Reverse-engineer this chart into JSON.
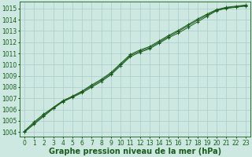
{
  "background_color": "#cce8e0",
  "grid_color": "#aacccc",
  "line_color": "#1a5c1a",
  "marker_color": "#1a5c1a",
  "xlabel": "Graphe pression niveau de la mer (hPa)",
  "xlabel_fontsize": 7.0,
  "tick_fontsize": 5.5,
  "ytick_labels": [
    1004,
    1005,
    1006,
    1007,
    1008,
    1009,
    1010,
    1011,
    1012,
    1013,
    1014,
    1015
  ],
  "xtick_labels": [
    0,
    1,
    2,
    3,
    4,
    5,
    6,
    7,
    8,
    9,
    10,
    11,
    12,
    13,
    14,
    15,
    16,
    17,
    18,
    19,
    20,
    21,
    22,
    23
  ],
  "ylim": [
    1003.6,
    1015.6
  ],
  "xlim": [
    -0.5,
    23.5
  ],
  "series1": [
    1004.0,
    1004.7,
    1005.4,
    1006.1,
    1006.7,
    1007.1,
    1007.5,
    1008.0,
    1008.5,
    1009.1,
    1009.9,
    1010.7,
    1011.1,
    1011.4,
    1011.9,
    1012.4,
    1012.8,
    1013.3,
    1013.8,
    1014.3,
    1014.8,
    1015.0,
    1015.1,
    1015.2
  ],
  "series2": [
    1004.05,
    1004.8,
    1005.5,
    1006.15,
    1006.75,
    1007.15,
    1007.6,
    1008.1,
    1008.6,
    1009.2,
    1010.0,
    1010.8,
    1011.2,
    1011.5,
    1012.0,
    1012.5,
    1012.95,
    1013.45,
    1013.95,
    1014.4,
    1014.85,
    1015.05,
    1015.15,
    1015.25
  ],
  "series3": [
    1004.1,
    1004.9,
    1005.6,
    1006.2,
    1006.8,
    1007.2,
    1007.65,
    1008.2,
    1008.7,
    1009.3,
    1010.1,
    1010.9,
    1011.3,
    1011.6,
    1012.1,
    1012.6,
    1013.05,
    1013.55,
    1014.05,
    1014.5,
    1014.9,
    1015.1,
    1015.2,
    1015.3
  ]
}
